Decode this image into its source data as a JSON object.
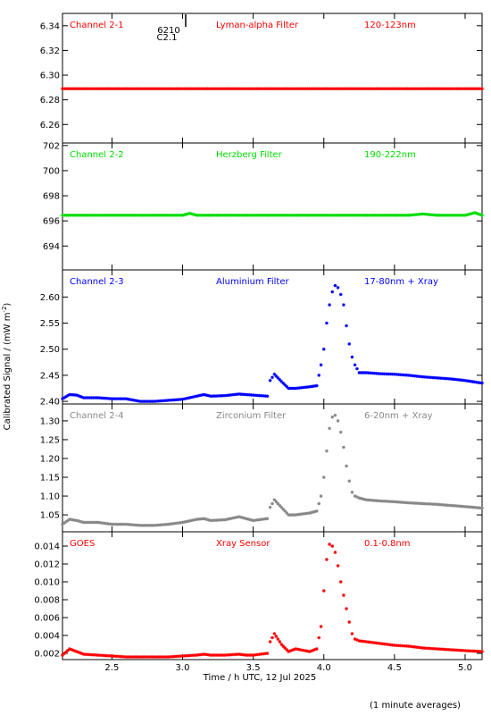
{
  "chart_data": {
    "type": "scatter",
    "xlabel": "Time / h UTC, 12 Jul 2025",
    "ylabel": "Calibrated Signal / (mW m",
    "ylabel_sup": "-2",
    "ylabel_close": ")",
    "footnote": "(1 minute averages)",
    "xlim": [
      2.15,
      5.12
    ],
    "x_ticks": [
      2.5,
      3.0,
      3.5,
      4.0,
      4.5,
      5.0
    ],
    "x_tick_labels": [
      "2.5",
      "3.0",
      "3.5",
      "4.0",
      "4.5",
      "5.0"
    ],
    "annotation": {
      "text_top": "6210",
      "text_bottom": "C2.1",
      "x": 3.14
    },
    "panels": [
      {
        "channel": "Channel 2-1",
        "filter": "Lyman-alpha Filter",
        "band": "120-123nm",
        "color": "#ff0000",
        "ylim": [
          6.245,
          6.35
        ],
        "y_ticks": [
          6.26,
          6.28,
          6.3,
          6.32,
          6.34
        ],
        "y_tick_labels": [
          "6.26",
          "6.28",
          "6.30",
          "6.32",
          "6.34"
        ],
        "x": [
          2.15,
          5.12
        ],
        "y": [
          6.289,
          6.289
        ]
      },
      {
        "channel": "Channel 2-2",
        "filter": "Herzberg Filter",
        "band": "190-222nm",
        "color": "#00dd00",
        "ylim": [
          692.1,
          702.2
        ],
        "y_ticks": [
          694,
          696,
          698,
          700,
          702
        ],
        "y_tick_labels": [
          "694",
          "696",
          "698",
          "700",
          "702"
        ],
        "x": [
          2.15,
          3.0,
          3.05,
          3.1,
          4.6,
          4.7,
          4.8,
          5.0,
          5.07,
          5.12
        ],
        "y": [
          696.45,
          696.45,
          696.6,
          696.45,
          696.45,
          696.55,
          696.45,
          696.45,
          696.65,
          696.45
        ]
      },
      {
        "channel": "Channel 2-3",
        "filter": "Aluminium Filter",
        "band": "17-80nm + Xray",
        "color": "#0000ff",
        "ylim": [
          2.395,
          2.652
        ],
        "y_ticks": [
          2.4,
          2.45,
          2.5,
          2.55,
          2.6
        ],
        "y_tick_labels": [
          "2.40",
          "2.45",
          "2.50",
          "2.55",
          "2.60"
        ],
        "x": [
          2.15,
          2.2,
          2.25,
          2.3,
          2.4,
          2.5,
          2.6,
          2.7,
          2.8,
          2.9,
          3.0,
          3.1,
          3.15,
          3.2,
          3.3,
          3.4,
          3.45,
          3.5,
          3.6,
          3.62,
          3.65,
          3.7,
          3.75,
          3.8,
          3.9,
          3.95,
          3.98,
          4.0,
          4.02,
          4.04,
          4.06,
          4.08,
          4.1,
          4.12,
          4.14,
          4.16,
          4.18,
          4.2,
          4.22,
          4.25,
          4.3,
          4.4,
          4.5,
          4.6,
          4.7,
          4.8,
          4.9,
          5.0,
          5.12
        ],
        "y": [
          2.405,
          2.413,
          2.412,
          2.407,
          2.407,
          2.405,
          2.405,
          2.4,
          2.4,
          2.402,
          2.404,
          2.41,
          2.413,
          2.41,
          2.411,
          2.414,
          2.413,
          2.412,
          2.41,
          2.44,
          2.452,
          2.438,
          2.425,
          2.425,
          2.428,
          2.43,
          2.47,
          2.5,
          2.55,
          2.585,
          2.61,
          2.622,
          2.618,
          2.605,
          2.585,
          2.545,
          2.51,
          2.485,
          2.47,
          2.455,
          2.455,
          2.453,
          2.452,
          2.45,
          2.447,
          2.445,
          2.443,
          2.44,
          2.435
        ]
      },
      {
        "channel": "Channel 2-4",
        "filter": "Zirconium Filter",
        "band": "6-20nm + Xray",
        "color": "#888888",
        "ylim": [
          1.005,
          1.345
        ],
        "y_ticks": [
          1.05,
          1.1,
          1.15,
          1.2,
          1.25,
          1.3
        ],
        "y_tick_labels": [
          "1.05",
          "1.10",
          "1.15",
          "1.20",
          "1.25",
          "1.30"
        ],
        "x": [
          2.15,
          2.2,
          2.25,
          2.3,
          2.4,
          2.5,
          2.6,
          2.7,
          2.8,
          2.9,
          3.0,
          3.1,
          3.15,
          3.2,
          3.3,
          3.4,
          3.45,
          3.5,
          3.6,
          3.62,
          3.65,
          3.7,
          3.75,
          3.8,
          3.9,
          3.95,
          3.98,
          4.0,
          4.02,
          4.04,
          4.06,
          4.08,
          4.1,
          4.12,
          4.14,
          4.16,
          4.18,
          4.2,
          4.22,
          4.25,
          4.3,
          4.4,
          4.5,
          4.6,
          4.7,
          4.8,
          4.9,
          5.0,
          5.12
        ],
        "y": [
          1.025,
          1.038,
          1.035,
          1.03,
          1.03,
          1.025,
          1.025,
          1.022,
          1.022,
          1.025,
          1.03,
          1.038,
          1.04,
          1.035,
          1.037,
          1.045,
          1.04,
          1.035,
          1.04,
          1.07,
          1.09,
          1.07,
          1.05,
          1.05,
          1.055,
          1.06,
          1.1,
          1.15,
          1.22,
          1.28,
          1.31,
          1.315,
          1.3,
          1.27,
          1.23,
          1.18,
          1.14,
          1.11,
          1.1,
          1.095,
          1.09,
          1.087,
          1.085,
          1.082,
          1.08,
          1.078,
          1.075,
          1.072,
          1.068
        ]
      },
      {
        "channel": "GOES",
        "filter": "Xray Sensor",
        "band": "0.1-0.8nm",
        "color": "#ff0000",
        "ylim": [
          0.0013,
          0.0156
        ],
        "y_ticks": [
          0.002,
          0.004,
          0.006,
          0.008,
          0.01,
          0.012,
          0.014
        ],
        "y_tick_labels": [
          "0.002",
          "0.004",
          "0.006",
          "0.008",
          "0.010",
          "0.012",
          "0.014"
        ],
        "x": [
          2.15,
          2.2,
          2.25,
          2.3,
          2.4,
          2.5,
          2.6,
          2.7,
          2.8,
          2.9,
          3.0,
          3.1,
          3.15,
          3.2,
          3.3,
          3.4,
          3.45,
          3.5,
          3.6,
          3.62,
          3.65,
          3.7,
          3.75,
          3.8,
          3.9,
          3.95,
          3.98,
          4.0,
          4.02,
          4.04,
          4.06,
          4.08,
          4.1,
          4.12,
          4.14,
          4.16,
          4.18,
          4.2,
          4.22,
          4.25,
          4.3,
          4.4,
          4.5,
          4.6,
          4.7,
          4.8,
          4.9,
          5.0,
          5.12
        ],
        "y": [
          0.0018,
          0.0025,
          0.0022,
          0.0019,
          0.0018,
          0.0017,
          0.0016,
          0.0016,
          0.0016,
          0.0016,
          0.0017,
          0.0018,
          0.0019,
          0.0018,
          0.0018,
          0.0019,
          0.0018,
          0.0018,
          0.002,
          0.0033,
          0.0042,
          0.003,
          0.0022,
          0.0025,
          0.0022,
          0.0025,
          0.005,
          0.009,
          0.0125,
          0.0142,
          0.014,
          0.0133,
          0.0118,
          0.01,
          0.0085,
          0.007,
          0.0055,
          0.0042,
          0.0036,
          0.0034,
          0.0033,
          0.0031,
          0.0029,
          0.0028,
          0.0026,
          0.0025,
          0.0024,
          0.0023,
          0.0022
        ]
      }
    ]
  }
}
